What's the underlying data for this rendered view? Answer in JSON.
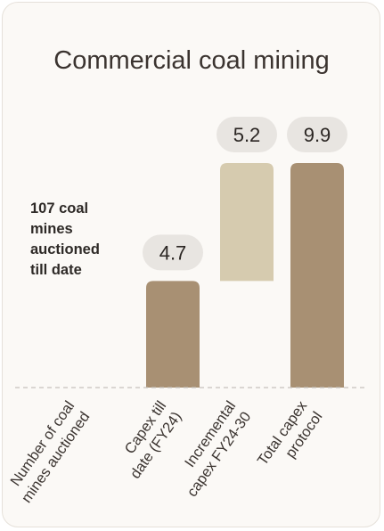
{
  "chart_data": {
    "type": "bar",
    "waterfall": true,
    "title": "Commercial coal mining",
    "annotation": [
      "107 coal",
      "mines",
      "auctioned",
      "till date"
    ],
    "categories": [
      [
        "Number of coal",
        "mines auctioned"
      ],
      [
        "Capex till",
        "date (FY24)"
      ],
      [
        "Incremental",
        "capex FY24-30"
      ],
      [
        "Total capex",
        "protocol"
      ]
    ],
    "values": [
      null,
      4.7,
      5.2,
      9.9
    ],
    "value_labels": [
      "",
      "4.7",
      "5.2",
      "9.9"
    ],
    "bar_base": [
      null,
      0,
      4.7,
      0
    ],
    "ylim": [
      0,
      9.9
    ],
    "grid": false,
    "colors": {
      "dark_bar": "#a89073",
      "light_bar": "#d6cbaf",
      "pill": "#e8e5e1",
      "baseline": "#c6c2bd"
    }
  }
}
